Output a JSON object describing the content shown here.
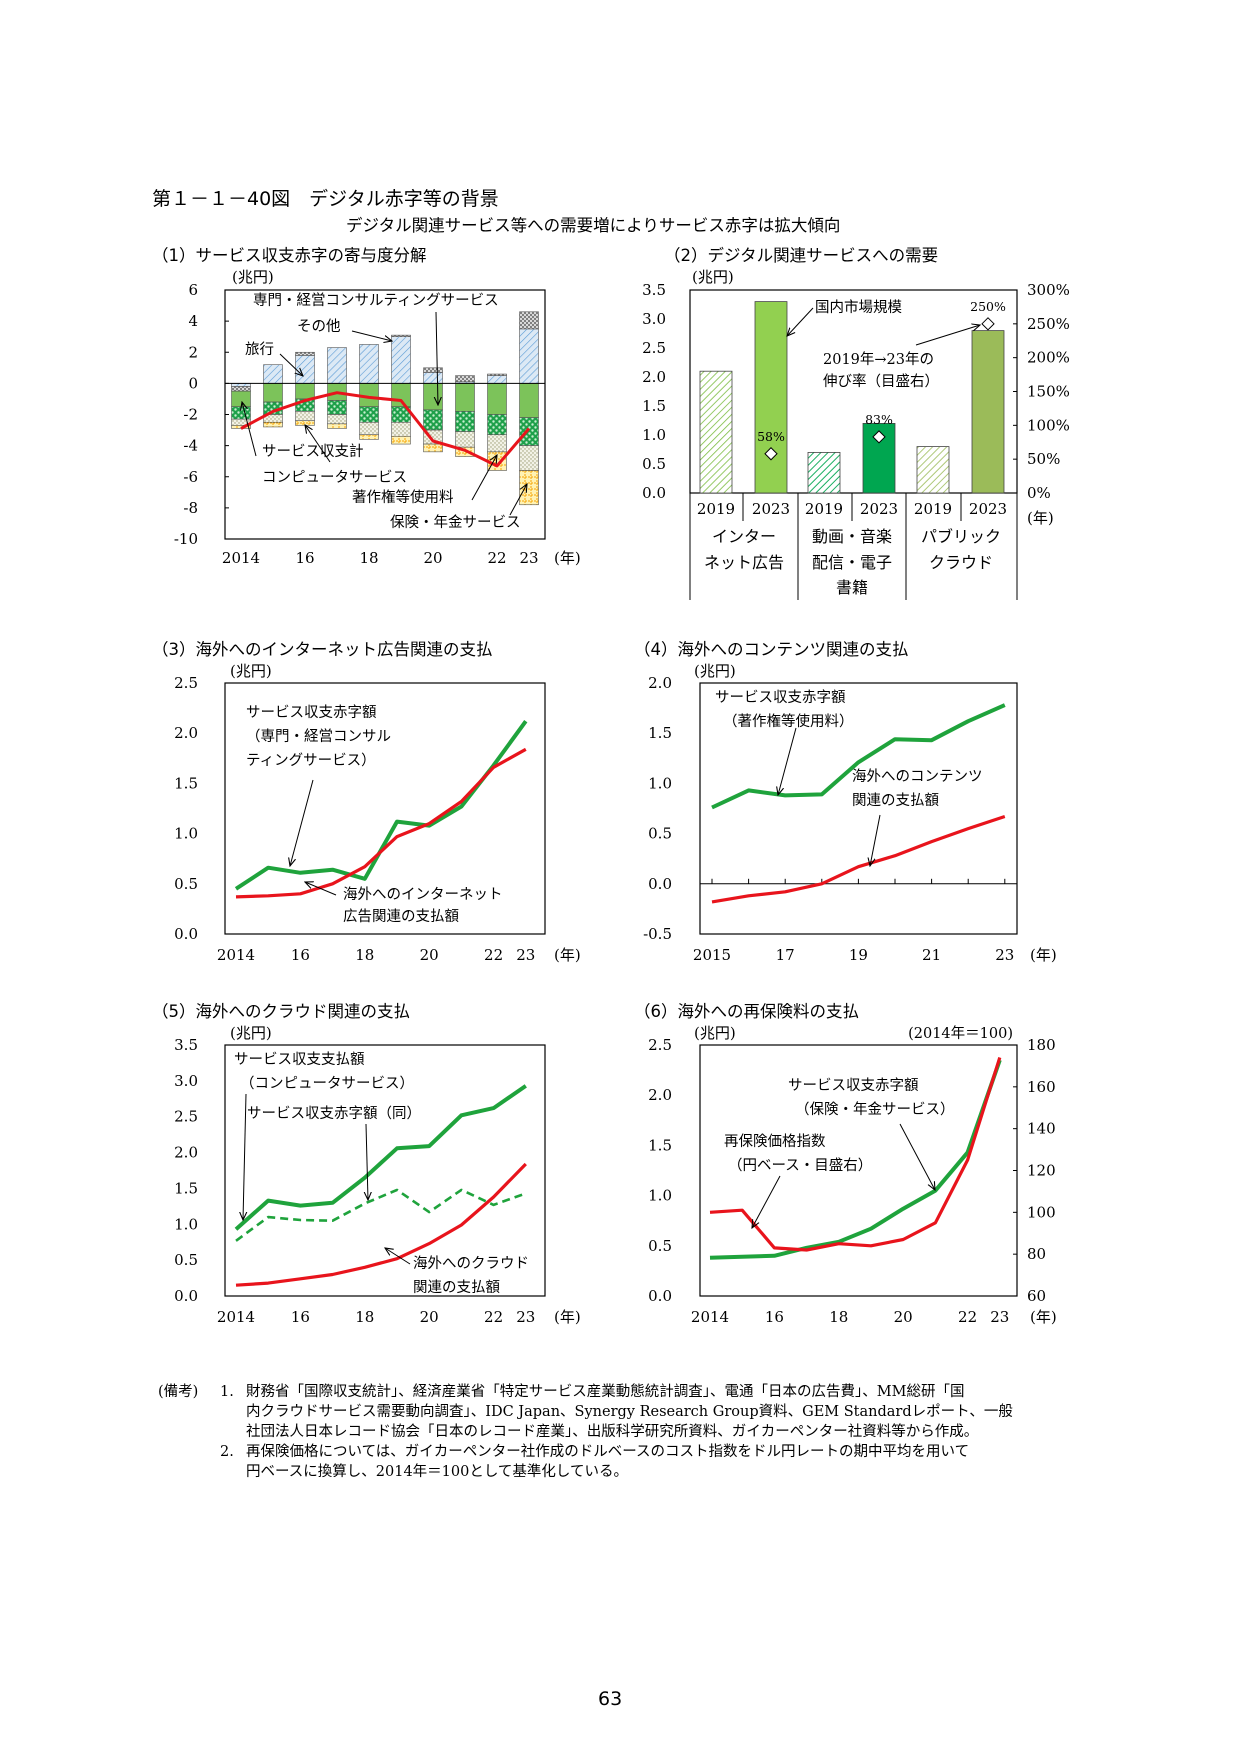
{
  "figure": {
    "title": "第１－１－40図　デジタル赤字等の背景",
    "subtitle": "デジタル関連サービス等への需要増によりサービス赤字は拡大傾向"
  },
  "charts": {
    "c1": {
      "heading": "（1）サービス収支赤字の寄与度分解",
      "unit": "(兆円)",
      "year_suffix": "(年)",
      "labels": {
        "consulting": "専門・経営コンサルティングサービス",
        "other": "その他",
        "travel": "旅行",
        "services_balance": "サービス収支計",
        "computer": "コンピュータサービス",
        "royalty": "著作権等使用料",
        "insurance": "保険・年金サービス"
      }
    },
    "c2": {
      "heading": "（2）デジタル関連サービスへの需要",
      "unit": "(兆円)",
      "year_suffix": "(年)",
      "labels": {
        "market": "国内市場規模",
        "growth": "2019年→23年の",
        "growth2": "伸び率（目盛右）"
      },
      "categories": [
        {
          "l1": "インター",
          "l2": "ネット広告",
          "l3": ""
        },
        {
          "l1": "動画・音楽",
          "l2": "配信・電子",
          "l3": "書籍"
        },
        {
          "l1": "パブリック",
          "l2": "クラウド",
          "l3": ""
        }
      ]
    },
    "c3": {
      "heading": "（3）海外へのインターネット広告関連の支払",
      "unit": "(兆円)",
      "year_suffix": "(年)",
      "labels": {
        "deficit": "サービス収支赤字額",
        "deficit2": "（専門・経営コンサル",
        "deficit3": "ティングサービス）",
        "payment": "海外へのインターネット",
        "payment2": "広告関連の支払額"
      }
    },
    "c4": {
      "heading": "（4）海外へのコンテンツ関連の支払",
      "unit": "(兆円)",
      "year_suffix": "(年)",
      "labels": {
        "deficit": "サービス収支赤字額",
        "deficit2": "（著作権等使用料）",
        "payment": "海外へのコンテンツ",
        "payment2": "関連の支払額"
      }
    },
    "c5": {
      "heading": "（5）海外へのクラウド関連の支払",
      "unit": "(兆円)",
      "year_suffix": "(年)",
      "labels": {
        "payments": "サービス収支支払額",
        "payments2": "（コンピュータサービス）",
        "deficit": "サービス収支赤字額（同）",
        "cloud": "海外へのクラウド",
        "cloud2": "関連の支払額"
      }
    },
    "c6": {
      "heading": "（6）海外への再保険料の支払",
      "unit": "(兆円)",
      "unit_right": "(2014年＝100)",
      "year_suffix": "(年)",
      "labels": {
        "deficit": "サービス収支赤字額",
        "deficit2": "（保険・年金サービス）",
        "index": "再保険価格指数",
        "index2": "（円ベース・目盛右）"
      }
    }
  },
  "notes": {
    "prefix": "(備考)",
    "n1_num": "1.",
    "n1_l1": "財務省「国際収支統計」、経済産業省「特定サービス産業動態統計調査」、電通「日本の広告費」、MM総研「国",
    "n1_l2": "内クラウドサービス需要動向調査」、IDC Japan、Synergy Research Group資料、GEM Standardレポート、一般",
    "n1_l3": "社団法人日本レコード協会「日本のレコード産業」、出版科学研究所資料、ガイカーペンター社資料等から作成。",
    "n2_num": "2.",
    "n2_l1": "再保険価格については、ガイカーペンター社作成のドルベースのコスト指数をドル円レートの期中平均を用いて",
    "n2_l2": "円ベースに換算し、2014年＝100として基準化している。"
  },
  "page_number": "63",
  "colors": {
    "red": "#e8141c",
    "green": "#1fa33c",
    "bar_light": "#92d050",
    "bar_dark_green": "#00a650",
    "bar_olive": "#9bbb59"
  },
  "chart_data": [
    {
      "id": "c1",
      "type": "bar",
      "stacked": true,
      "x": [
        2014,
        2015,
        2016,
        2017,
        2018,
        2019,
        2020,
        2021,
        2022,
        2023
      ],
      "x_tick_labels": [
        "2014",
        "16",
        "18",
        "20",
        "22",
        "23"
      ],
      "ylim": [
        -10,
        6
      ],
      "y_ticks": [
        6,
        4,
        2,
        0,
        -2,
        -4,
        -6,
        -8,
        -10
      ],
      "series": [
        {
          "name": "旅行",
          "type": "bar",
          "values": [
            -0.2,
            1.2,
            1.8,
            2.3,
            2.5,
            3.0,
            0.7,
            0.1,
            0.5,
            3.5
          ]
        },
        {
          "name": "その他",
          "type": "bar",
          "values": [
            -0.3,
            0.0,
            0.2,
            0.0,
            0.0,
            0.1,
            0.3,
            0.4,
            0.1,
            1.1
          ]
        },
        {
          "name": "専門・経営コンサルティングサービス",
          "type": "bar",
          "values": [
            -1.0,
            -1.2,
            -1.0,
            -1.1,
            -1.5,
            -1.5,
            -1.7,
            -1.8,
            -2.0,
            -2.2
          ]
        },
        {
          "name": "コンピュータサービス",
          "type": "bar",
          "values": [
            -0.8,
            -0.8,
            -0.8,
            -0.9,
            -1.0,
            -1.0,
            -1.3,
            -1.3,
            -1.3,
            -1.8
          ]
        },
        {
          "name": "著作権等使用料",
          "type": "bar",
          "values": [
            -0.4,
            -0.5,
            -0.6,
            -0.6,
            -0.8,
            -0.9,
            -0.9,
            -1.0,
            -1.1,
            -1.6
          ]
        },
        {
          "name": "保険・年金サービス",
          "type": "bar",
          "values": [
            -0.2,
            -0.3,
            -0.3,
            -0.3,
            -0.3,
            -0.5,
            -0.5,
            -0.6,
            -1.2,
            -2.2
          ]
        },
        {
          "name": "サービス収支計",
          "type": "line",
          "values": [
            -2.9,
            -1.8,
            -1.1,
            -0.6,
            -0.9,
            -1.1,
            -3.7,
            -4.3,
            -5.3,
            -2.9
          ]
        }
      ]
    },
    {
      "id": "c2",
      "type": "bar",
      "categories": [
        "2019",
        "2023",
        "2019",
        "2023",
        "2019",
        "2023"
      ],
      "ylim": [
        0,
        3.5
      ],
      "y_ticks": [
        3.5,
        3.0,
        2.5,
        2.0,
        1.5,
        1.0,
        0.5,
        0.0
      ],
      "y2lim": [
        0,
        300
      ],
      "y2_ticks": [
        "300%",
        "250%",
        "200%",
        "150%",
        "100%",
        "50%",
        "0%"
      ],
      "series": [
        {
          "name": "国内市場規模",
          "values": [
            2.1,
            3.3,
            0.7,
            1.2,
            0.8,
            2.8
          ]
        },
        {
          "name": "2019年→23年の伸び率（目盛右）",
          "values": [
            null,
            58,
            null,
            83,
            null,
            250
          ],
          "labels": [
            "",
            "58%",
            "",
            "83%",
            "",
            "250%"
          ]
        }
      ]
    },
    {
      "id": "c3",
      "type": "line",
      "x": [
        2014,
        2015,
        2016,
        2017,
        2018,
        2019,
        2020,
        2021,
        2022,
        2023
      ],
      "x_tick_labels": [
        "2014",
        "16",
        "18",
        "20",
        "22",
        "23"
      ],
      "ylim": [
        0,
        2.5
      ],
      "y_ticks": [
        "0.0",
        "0.5",
        "1.0",
        "1.5",
        "2.0",
        "2.5"
      ],
      "series": [
        {
          "name": "サービス収支赤字額（専門・経営コンサルティングサービス）",
          "values": [
            0.45,
            0.66,
            0.61,
            0.64,
            0.55,
            1.12,
            1.08,
            1.27,
            1.68,
            2.12
          ]
        },
        {
          "name": "海外へのインターネット広告関連の支払額",
          "values": [
            0.37,
            0.38,
            0.4,
            0.5,
            0.67,
            0.97,
            1.1,
            1.32,
            1.66,
            1.84
          ]
        }
      ]
    },
    {
      "id": "c4",
      "type": "line",
      "x": [
        2015,
        2016,
        2017,
        2018,
        2019,
        2020,
        2021,
        2022,
        2023
      ],
      "x_tick_labels": [
        "2015",
        "17",
        "19",
        "21",
        "23"
      ],
      "ylim": [
        -0.5,
        2.0
      ],
      "y_ticks": [
        "-0.5",
        "0.0",
        "0.5",
        "1.0",
        "1.5",
        "2.0"
      ],
      "series": [
        {
          "name": "サービス収支赤字額（著作権等使用料）",
          "values": [
            0.76,
            0.93,
            0.88,
            0.89,
            1.21,
            1.44,
            1.43,
            1.62,
            1.78
          ]
        },
        {
          "name": "海外へのコンテンツ関連の支払額",
          "values": [
            -0.18,
            -0.12,
            -0.08,
            0.0,
            0.17,
            0.28,
            0.42,
            0.55,
            0.67
          ]
        }
      ]
    },
    {
      "id": "c5",
      "type": "line",
      "x": [
        2014,
        2015,
        2016,
        2017,
        2018,
        2019,
        2020,
        2021,
        2022,
        2023
      ],
      "x_tick_labels": [
        "2014",
        "16",
        "18",
        "20",
        "22",
        "23"
      ],
      "ylim": [
        0,
        3.5
      ],
      "y_ticks": [
        "0.0",
        "0.5",
        "1.0",
        "1.5",
        "2.0",
        "2.5",
        "3.0",
        "3.5"
      ],
      "series": [
        {
          "name": "サービス収支支払額（コンピュータサービス）",
          "values": [
            0.93,
            1.33,
            1.26,
            1.3,
            1.65,
            2.06,
            2.09,
            2.52,
            2.62,
            2.93
          ]
        },
        {
          "name": "サービス収支赤字額（同）",
          "dashed": true,
          "values": [
            0.77,
            1.1,
            1.06,
            1.05,
            1.29,
            1.48,
            1.17,
            1.48,
            1.27,
            1.43
          ]
        },
        {
          "name": "海外へのクラウド関連の支払額",
          "values": [
            0.15,
            0.18,
            0.24,
            0.3,
            0.4,
            0.52,
            0.73,
            0.99,
            1.38,
            1.84
          ]
        }
      ]
    },
    {
      "id": "c6",
      "type": "line",
      "x": [
        2014,
        2015,
        2016,
        2017,
        2018,
        2019,
        2020,
        2021,
        2022,
        2023
      ],
      "x_tick_labels": [
        "2014",
        "16",
        "18",
        "20",
        "22",
        "23"
      ],
      "ylim": [
        0,
        2.5
      ],
      "y_ticks": [
        "0.0",
        "0.5",
        "1.0",
        "1.5",
        "2.0",
        "2.5"
      ],
      "y2lim": [
        60,
        180
      ],
      "y2_ticks": [
        "60",
        "80",
        "100",
        "120",
        "140",
        "160",
        "180"
      ],
      "series": [
        {
          "name": "サービス収支赤字額（保険・年金サービス）",
          "axis": "left",
          "values": [
            0.38,
            0.39,
            0.4,
            0.48,
            0.54,
            0.67,
            0.87,
            1.05,
            1.43,
            2.35
          ]
        },
        {
          "name": "再保険価格指数（円ベース・目盛右）",
          "axis": "right",
          "values": [
            100,
            101,
            83,
            82,
            85,
            84,
            87,
            95,
            125,
            174
          ]
        }
      ]
    }
  ]
}
